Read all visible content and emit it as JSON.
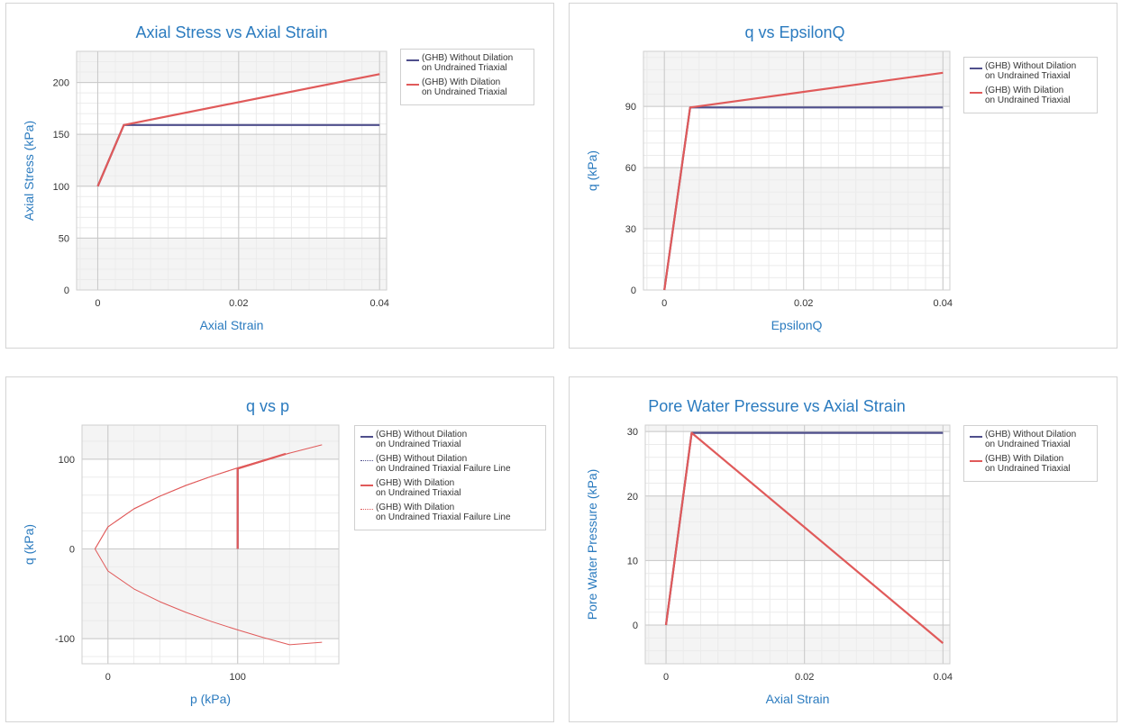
{
  "colors": {
    "without": "#4f4f8c",
    "with": "#e05a5a",
    "title": "#2b7bbf",
    "axis_label": "#2b7bbf",
    "tick": "#333333",
    "band": "#f4f4f4",
    "grid_major": "#c8c8c8",
    "grid_minor": "#ebebeb"
  },
  "charts": [
    {
      "title": "Axial Stress vs Axial Strain",
      "xlabel": "Axial Strain",
      "ylabel": "Axial Stress (kPa)",
      "legend": [
        {
          "line1": "(GHB) Without Dilation",
          "line2": "on Undrained Triaxial"
        },
        {
          "line1": "(GHB) With Dilation",
          "line2": "on Undrained Triaxial"
        }
      ]
    },
    {
      "title": "q vs EpsilonQ",
      "xlabel": "EpsilonQ",
      "ylabel": "q (kPa)",
      "legend": [
        {
          "line1": "(GHB) Without Dilation",
          "line2": "on Undrained Triaxial"
        },
        {
          "line1": "(GHB) With Dilation",
          "line2": "on Undrained Triaxial"
        }
      ]
    },
    {
      "title": "q vs p",
      "xlabel": "p (kPa)",
      "ylabel": "q (kPa)",
      "legend": [
        {
          "line1": "(GHB) Without Dilation",
          "line2": "on Undrained Triaxial"
        },
        {
          "line1": "(GHB) Without Dilation",
          "line2": "on Undrained Triaxial Failure Line"
        },
        {
          "line1": "(GHB) With Dilation",
          "line2": "on Undrained Triaxial"
        },
        {
          "line1": "(GHB) With Dilation",
          "line2": "on Undrained Triaxial Failure Line"
        }
      ]
    },
    {
      "title": "Pore Water Pressure vs Axial Strain",
      "xlabel": "Axial Strain",
      "ylabel": "Pore Water Pressure (kPa)",
      "legend": [
        {
          "line1": "(GHB) Without Dilation",
          "line2": "on Undrained Triaxial"
        },
        {
          "line1": "(GHB) With Dilation",
          "line2": "on Undrained Triaxial"
        }
      ]
    }
  ],
  "chart_data": [
    {
      "type": "line",
      "title": "Axial Stress vs Axial Strain",
      "xlabel": "Axial Strain",
      "ylabel": "Axial Stress (kPa)",
      "xlim": [
        -0.003,
        0.041
      ],
      "ylim": [
        0,
        230
      ],
      "xticks": [
        0,
        0.02,
        0.04
      ],
      "xtick_labels": [
        "0",
        "0.02",
        "0.04"
      ],
      "yticks": [
        0,
        50,
        100,
        150,
        200
      ],
      "ytick_labels": [
        "0",
        "50",
        "100",
        "150",
        "200"
      ],
      "legend_position": "top-right",
      "series": [
        {
          "name": "(GHB) Without Dilation on Undrained Triaxial",
          "style": "without",
          "x": [
            0,
            0.0037,
            0.04
          ],
          "y": [
            100,
            159,
            159
          ]
        },
        {
          "name": "(GHB) With Dilation on Undrained Triaxial",
          "style": "with",
          "x": [
            0,
            0.0037,
            0.04
          ],
          "y": [
            100,
            159,
            208
          ]
        }
      ]
    },
    {
      "type": "line",
      "title": "q vs EpsilonQ",
      "xlabel": "EpsilonQ",
      "ylabel": "q (kPa)",
      "xlim": [
        -0.003,
        0.041
      ],
      "ylim": [
        0,
        117
      ],
      "xticks": [
        0,
        0.02,
        0.04
      ],
      "xtick_labels": [
        "0",
        "0.02",
        "0.04"
      ],
      "yticks": [
        0,
        30,
        60,
        90
      ],
      "ytick_labels": [
        "0",
        "30",
        "60",
        "90"
      ],
      "legend_position": "top-right",
      "series": [
        {
          "name": "(GHB) Without Dilation on Undrained Triaxial",
          "style": "without",
          "x": [
            0,
            0.0037,
            0.04
          ],
          "y": [
            0,
            89.5,
            89.5
          ]
        },
        {
          "name": "(GHB) With Dilation on Undrained Triaxial",
          "style": "with",
          "x": [
            0,
            0.0037,
            0.04
          ],
          "y": [
            0,
            89.5,
            106.5
          ]
        }
      ]
    },
    {
      "type": "line",
      "title": "q vs p",
      "xlabel": "p (kPa)",
      "ylabel": "q (kPa)",
      "xlim": [
        -20,
        178
      ],
      "ylim": [
        -128,
        138
      ],
      "xticks": [
        0,
        100
      ],
      "xtick_labels": [
        "0",
        "100"
      ],
      "yticks": [
        -100,
        0,
        100
      ],
      "ytick_labels": [
        "-100",
        "0",
        "100"
      ],
      "legend_position": "top-right",
      "series": [
        {
          "name": "(GHB) Without Dilation on Undrained Triaxial",
          "style": "without",
          "x": [
            100,
            100
          ],
          "y": [
            0,
            89.5
          ]
        },
        {
          "name": "(GHB) Without Dilation on Undrained Triaxial Failure Line",
          "style": "without-thin",
          "x": [
            -10,
            0,
            20,
            40,
            60,
            80,
            100,
            120,
            140
          ],
          "y": [
            0,
            24.6,
            44.6,
            58.8,
            70.7,
            81.0,
            90.3,
            98.9,
            106.8
          ]
        },
        {
          "name": "(GHB) With Dilation on Undrained Triaxial",
          "style": "with",
          "x": [
            100,
            100,
            137
          ],
          "y": [
            0,
            89.5,
            106
          ]
        },
        {
          "name": "(GHB) With Dilation on Undrained Triaxial Failure Line",
          "style": "with-thin",
          "x": [
            -10,
            0,
            20,
            40,
            60,
            80,
            100,
            120,
            140,
            165
          ],
          "y": [
            0,
            24.6,
            44.6,
            58.8,
            70.7,
            81.0,
            90.3,
            98.9,
            106.8,
            116.0
          ]
        },
        {
          "name": "",
          "style": "with-thin",
          "x": [
            -10,
            0,
            20,
            40,
            60,
            80,
            100,
            120,
            140,
            165
          ],
          "y": [
            0,
            -24.6,
            -44.6,
            -58.8,
            -70.7,
            -81.0,
            -90.3,
            -98.9,
            -106.8,
            -104.0
          ]
        }
      ]
    },
    {
      "type": "line",
      "title": "Pore Water Pressure vs Axial Strain",
      "xlabel": "Axial Strain",
      "ylabel": "Pore Water Pressure (kPa)",
      "xlim": [
        -0.003,
        0.041
      ],
      "ylim": [
        -6,
        31
      ],
      "xticks": [
        0,
        0.02,
        0.04
      ],
      "xtick_labels": [
        "0",
        "0.02",
        "0.04"
      ],
      "yticks": [
        0,
        10,
        20,
        30
      ],
      "ytick_labels": [
        "0",
        "10",
        "20",
        "30"
      ],
      "legend_position": "top-right",
      "series": [
        {
          "name": "(GHB) Without Dilation on Undrained Triaxial",
          "style": "without",
          "x": [
            0,
            0.0037,
            0.04
          ],
          "y": [
            0,
            29.8,
            29.8
          ]
        },
        {
          "name": "(GHB) With Dilation on Undrained Triaxial",
          "style": "with",
          "x": [
            0,
            0.0037,
            0.04
          ],
          "y": [
            0,
            29.8,
            -2.8
          ]
        }
      ]
    }
  ]
}
